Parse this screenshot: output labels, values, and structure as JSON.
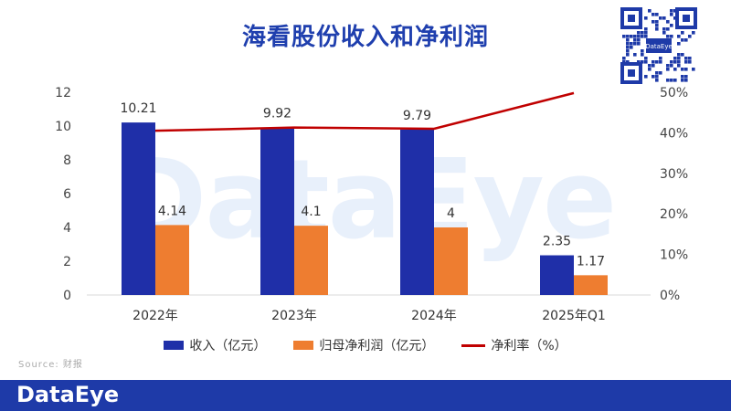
{
  "title": "海看股份收入和净利润",
  "watermark": "DataEye",
  "qr_label": "DataEye",
  "source": "Source: 财报",
  "footer_brand": "DataEye",
  "colors": {
    "revenue": "#1f2fa8",
    "profit": "#ee7d30",
    "margin": "#c00000",
    "title": "#1f3fae",
    "footer": "#1e3aa8"
  },
  "chart_data": {
    "type": "bar",
    "categories": [
      "2022年",
      "2023年",
      "2024年",
      "2025年Q1"
    ],
    "series": [
      {
        "name": "收入（亿元）",
        "type": "bar",
        "axis": "left",
        "values": [
          10.21,
          9.92,
          9.79,
          2.35
        ],
        "labels": [
          "10.21",
          "9.92",
          "9.79",
          "2.35"
        ]
      },
      {
        "name": "归母净利润（亿元）",
        "type": "bar",
        "axis": "left",
        "values": [
          4.14,
          4.1,
          4,
          1.17
        ],
        "labels": [
          "4.14",
          "4.1",
          "4",
          "1.17"
        ]
      },
      {
        "name": "净利率（%）",
        "type": "line",
        "axis": "right",
        "values": [
          40.5,
          41.3,
          41.0,
          49.8
        ]
      }
    ],
    "ylim_left": [
      0,
      12
    ],
    "yticks_left": [
      "0",
      "2",
      "4",
      "6",
      "8",
      "10",
      "12"
    ],
    "ylim_right": [
      0,
      50
    ],
    "yticks_right": [
      "0%",
      "10%",
      "20%",
      "30%",
      "40%",
      "50%"
    ],
    "grid": false,
    "legend_position": "bottom"
  }
}
